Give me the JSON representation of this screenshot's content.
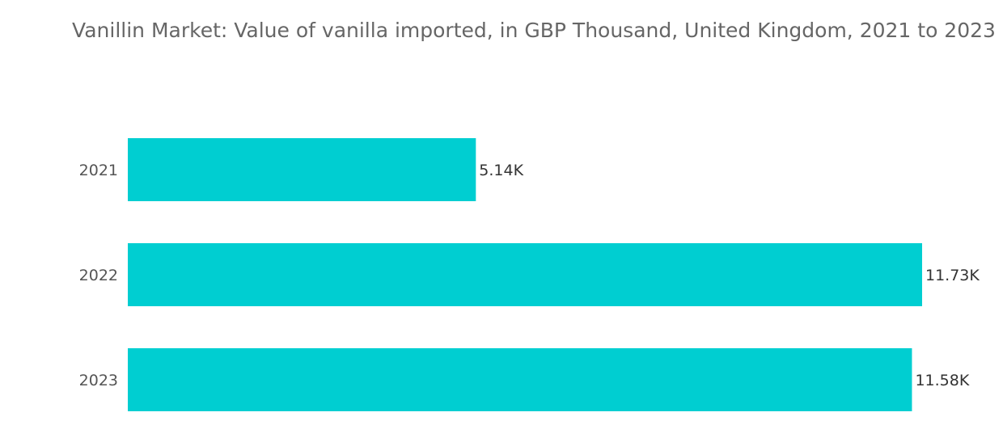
{
  "chart_data": {
    "type": "bar",
    "orientation": "horizontal",
    "title": "Vanillin Market: Value of vanilla imported, in GBP Thousand, United Kingdom, 2021 to 2023",
    "categories": [
      "2021",
      "2022",
      "2023"
    ],
    "values": [
      5.14,
      11.73,
      11.58
    ],
    "data_labels": [
      "5.14K",
      "11.73K",
      "11.58K"
    ],
    "xlabel": "",
    "ylabel": "",
    "xlim": [
      0,
      11.73
    ],
    "grid": false,
    "legend": "none",
    "bar_color": "#00CED1"
  }
}
